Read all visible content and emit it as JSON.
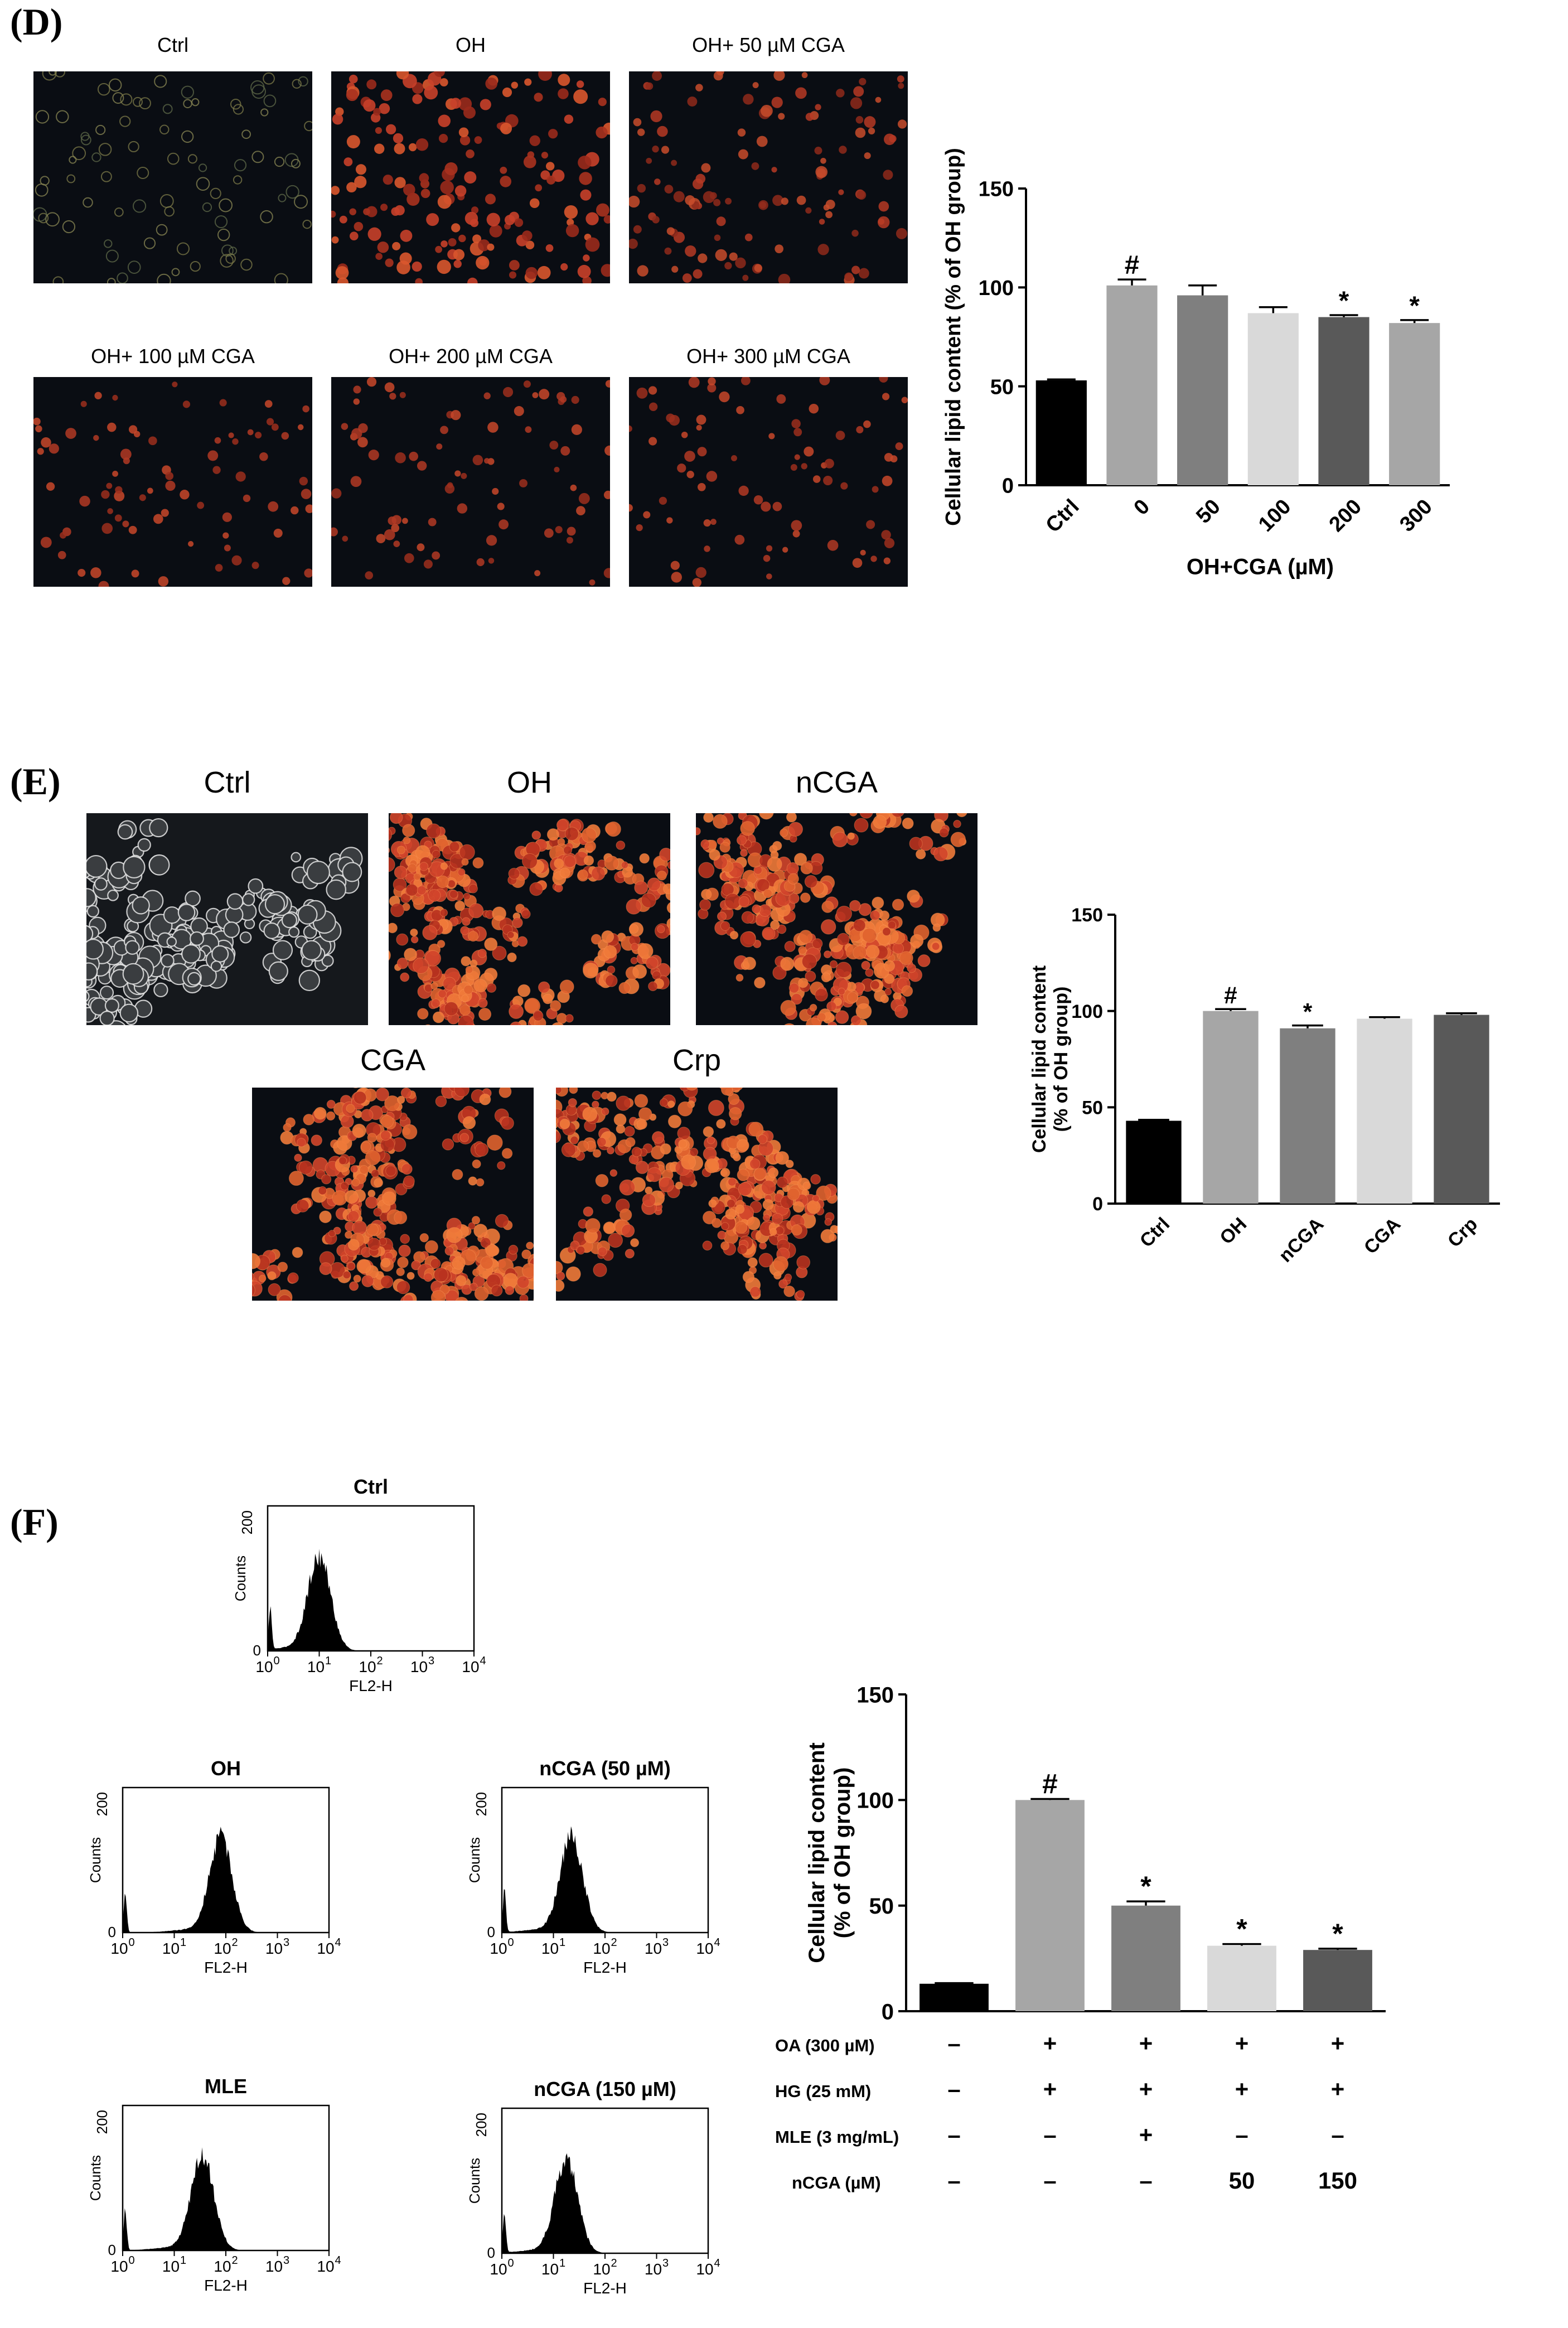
{
  "panels": {
    "D": {
      "letter": "(D)",
      "images": [
        {
          "label": "Ctrl",
          "style": "sparse-faint"
        },
        {
          "label": "OH",
          "style": "dense-red"
        },
        {
          "label": "OH+ 50 µM CGA",
          "style": "medium-red"
        },
        {
          "label": "OH+ 100 µM CGA",
          "style": "sparse-red"
        },
        {
          "label": "OH+ 200 µM CGA",
          "style": "sparse-red"
        },
        {
          "label": "OH+ 300 µM CGA",
          "style": "sparse-red"
        }
      ]
    },
    "E": {
      "letter": "(E)",
      "images": [
        {
          "label": "Ctrl",
          "style": "phase"
        },
        {
          "label": "OH",
          "style": "cluster-red"
        },
        {
          "label": "nCGA",
          "style": "cluster-red"
        },
        {
          "label": "CGA",
          "style": "cluster-red"
        },
        {
          "label": "Crp",
          "style": "cluster-red"
        }
      ]
    },
    "F": {
      "letter": "(F)",
      "histograms": [
        {
          "title": "Ctrl",
          "peak_decade": 1.0,
          "ylabel": "Counts",
          "xlabel": "FL2-H",
          "ymax_label": "200",
          "ymin_label": "0"
        },
        {
          "title": "OH",
          "peak_decade": 1.9,
          "ylabel": "Counts",
          "xlabel": "FL2-H",
          "ymax_label": "200",
          "ymin_label": "0"
        },
        {
          "title": "nCGA (50 µM)",
          "peak_decade": 1.35,
          "ylabel": "Counts",
          "xlabel": "FL2-H",
          "ymax_label": "200",
          "ymin_label": "0"
        },
        {
          "title": "MLE",
          "peak_decade": 1.55,
          "ylabel": "Counts",
          "xlabel": "FL2-H",
          "ymax_label": "200",
          "ymin_label": "0"
        },
        {
          "title": "nCGA (150 µM)",
          "peak_decade": 1.25,
          "ylabel": "Counts",
          "xlabel": "FL2-H",
          "ymax_label": "200",
          "ymin_label": "0"
        }
      ],
      "treatment_table": [
        {
          "label": "OA (300 µM)",
          "values": [
            "–",
            "+",
            "+",
            "+",
            "+"
          ]
        },
        {
          "label": "HG (25 mM)",
          "values": [
            "–",
            "+",
            "+",
            "+",
            "+"
          ]
        },
        {
          "label": "MLE (3 mg/mL)",
          "values": [
            "–",
            "–",
            "+",
            "–",
            "–"
          ]
        },
        {
          "label": "nCGA (µM)",
          "values": [
            "–",
            "–",
            "–",
            "50",
            "150"
          ]
        }
      ]
    }
  },
  "chart_data": [
    {
      "type": "bar",
      "panel": "D",
      "categories": [
        "Ctrl",
        "0",
        "50",
        "100",
        "200",
        "300"
      ],
      "values": [
        53,
        101,
        96,
        87,
        85,
        82
      ],
      "errors": [
        0.5,
        3,
        5,
        3,
        1,
        1.5
      ],
      "annotations": [
        "",
        "#",
        "",
        "",
        "*",
        "*"
      ],
      "colors": [
        "#000000",
        "#a6a6a6",
        "#7f7f7f",
        "#d9d9d9",
        "#595959",
        "#a6a6a6"
      ],
      "ylabel": "Cellular lipid content (% of OH group)",
      "xlabel": "OH+CGA (µM)",
      "ylim": [
        0,
        150
      ],
      "yticks": [
        "0",
        "50",
        "100",
        "150"
      ]
    },
    {
      "type": "bar",
      "panel": "E",
      "categories": [
        "Ctrl",
        "OH",
        "nCGA",
        "CGA",
        "Crp"
      ],
      "values": [
        43,
        100,
        91,
        96,
        98
      ],
      "errors": [
        0.5,
        1,
        1.5,
        0.8,
        0.8
      ],
      "annotations": [
        "",
        "#",
        "*",
        "",
        ""
      ],
      "colors": [
        "#000000",
        "#a6a6a6",
        "#7f7f7f",
        "#d9d9d9",
        "#595959"
      ],
      "ylabel": [
        "Cellular lipid content",
        "(% of OH group)"
      ],
      "ylim": [
        0,
        150
      ],
      "yticks": [
        "0",
        "50",
        "100",
        "150"
      ]
    },
    {
      "type": "bar",
      "panel": "F",
      "categories": [
        "",
        "",
        "",
        "",
        ""
      ],
      "values": [
        13,
        100,
        50,
        31,
        29
      ],
      "errors": [
        0.3,
        0.5,
        2,
        0.8,
        0.6
      ],
      "annotations": [
        "",
        "#",
        "*",
        "*",
        "*"
      ],
      "colors": [
        "#000000",
        "#a6a6a6",
        "#7f7f7f",
        "#d9d9d9",
        "#595959"
      ],
      "ylabel": [
        "Cellular lipid content",
        "(% of OH group)"
      ],
      "ylim": [
        0,
        150
      ],
      "yticks": [
        "0",
        "50",
        "100",
        "150"
      ]
    }
  ]
}
